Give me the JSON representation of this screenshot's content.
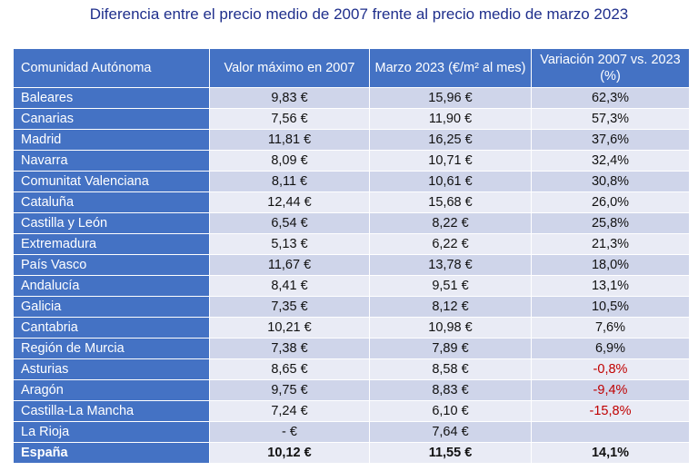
{
  "title": "Diferencia entre el precio medio de 2007 frente al precio medio de marzo 2023",
  "table": {
    "headers": [
      "Comunidad Autónoma",
      "Valor máximo en 2007",
      "Marzo 2023 (€/m² al mes)",
      "Variación 2007 vs. 2023 (%)"
    ],
    "rows": [
      [
        "Baleares",
        "9,83 €",
        "15,96 €",
        "62,3%"
      ],
      [
        "Canarias",
        "7,56 €",
        "11,90 €",
        "57,3%"
      ],
      [
        "Madrid",
        "11,81 €",
        "16,25 €",
        "37,6%"
      ],
      [
        "Navarra",
        "8,09 €",
        "10,71 €",
        "32,4%"
      ],
      [
        "Comunitat Valenciana",
        "8,11 €",
        "10,61 €",
        "30,8%"
      ],
      [
        "Cataluña",
        "12,44 €",
        "15,68 €",
        "26,0%"
      ],
      [
        "Castilla y León",
        "6,54 €",
        "8,22 €",
        "25,8%"
      ],
      [
        "Extremadura",
        "5,13 €",
        "6,22 €",
        "21,3%"
      ],
      [
        "País Vasco",
        "11,67 €",
        "13,78 €",
        "18,0%"
      ],
      [
        "Andalucía",
        "8,41 €",
        "9,51 €",
        "13,1%"
      ],
      [
        "Galicia",
        "7,35 €",
        "8,12 €",
        "10,5%"
      ],
      [
        "Cantabria",
        "10,21 €",
        "10,98 €",
        "7,6%"
      ],
      [
        "Región de Murcia",
        "7,38 €",
        "7,89 €",
        "6,9%"
      ],
      [
        "Asturias",
        "8,65 €",
        "8,58 €",
        "-0,8%"
      ],
      [
        "Aragón",
        "9,75 €",
        "8,83 €",
        "-9,4%"
      ],
      [
        "Castilla-La Mancha",
        "7,24 €",
        "6,10 €",
        "-15,8%"
      ],
      [
        "La Rioja",
        "-   €",
        "7,64 €",
        ""
      ]
    ],
    "total": [
      "España",
      "10,12 €",
      "11,55 €",
      "14,1%"
    ]
  },
  "colors": {
    "header": "#4472c4",
    "row_dark": "#cfd5ea",
    "row_light": "#e9ebf5",
    "negative": "#c00000",
    "title": "#1f2f8c"
  }
}
